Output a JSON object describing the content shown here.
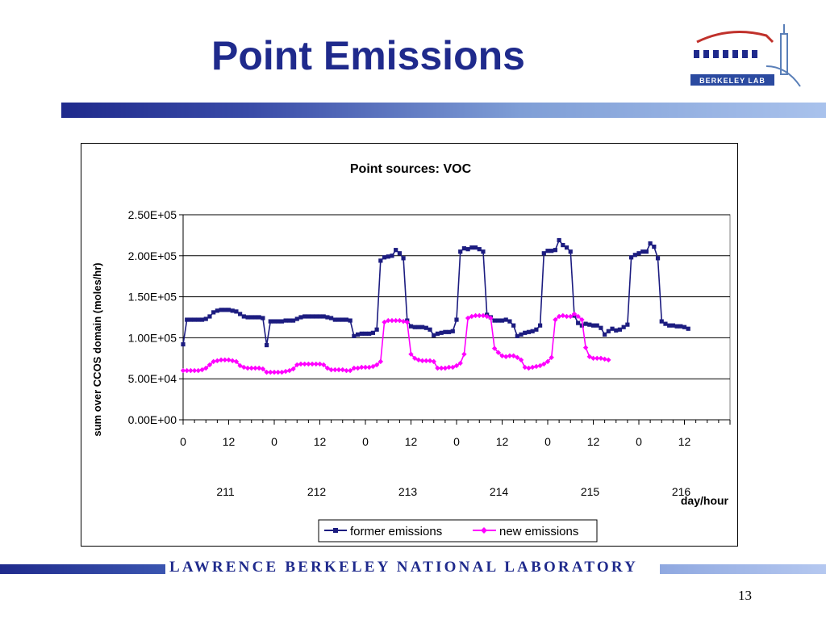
{
  "slide": {
    "title": "Point Emissions",
    "logo_text": "BERKELEY LAB",
    "footer_text": "LAWRENCE BERKELEY NATIONAL LABORATORY",
    "page_number": "13"
  },
  "chart_data": {
    "type": "line",
    "title": "Point sources: VOC",
    "ylabel": "sum over CCOS domain (moles/hr)",
    "xlabel": "day/hour",
    "ylim": [
      0,
      250000
    ],
    "yticks": [
      "0.00E+00",
      "5.00E+04",
      "1.00E+05",
      "1.50E+05",
      "2.00E+05",
      "2.50E+05"
    ],
    "hour_tick_labels": [
      "0",
      "12",
      "0",
      "12",
      "0",
      "12",
      "0",
      "12",
      "0",
      "12",
      "0",
      "12"
    ],
    "day_labels": [
      "211",
      "212",
      "213",
      "214",
      "215",
      "216"
    ],
    "grid": "horizontal",
    "legend_position": "bottom",
    "colors": {
      "former": "#1c1c80",
      "new": "#ff00ff"
    },
    "series": [
      {
        "name": "former emissions",
        "values": [
          92000,
          122000,
          122000,
          122000,
          122000,
          122000,
          123000,
          126000,
          131000,
          133000,
          134000,
          134000,
          134000,
          133000,
          132000,
          129000,
          126000,
          125000,
          125000,
          125000,
          125000,
          124000,
          91000,
          120000,
          120000,
          120000,
          120000,
          121000,
          121000,
          121000,
          123000,
          125000,
          126000,
          126000,
          126000,
          126000,
          126000,
          126000,
          125000,
          124000,
          122000,
          122000,
          122000,
          122000,
          121000,
          102000,
          104000,
          105000,
          105000,
          105000,
          106000,
          110000,
          194000,
          198000,
          199000,
          200000,
          207000,
          203000,
          197000,
          121000,
          114000,
          113000,
          113000,
          113000,
          112000,
          110000,
          103000,
          105000,
          106000,
          107000,
          107000,
          108000,
          122000,
          205000,
          209000,
          208000,
          210000,
          210000,
          208000,
          205000,
          128000,
          125000,
          121000,
          121000,
          121000,
          122000,
          120000,
          115000,
          102000,
          104000,
          106000,
          107000,
          108000,
          110000,
          115000,
          203000,
          206000,
          206000,
          207000,
          219000,
          213000,
          210000,
          205000,
          127000,
          118000,
          115000,
          117000,
          116000,
          115000,
          115000,
          112000,
          104000,
          108000,
          111000,
          109000,
          110000,
          113000,
          116000,
          198000,
          201000,
          203000,
          205000,
          205000,
          215000,
          211000,
          197000,
          120000,
          117000,
          115000,
          115000,
          114000,
          114000,
          113000,
          111000
        ]
      },
      {
        "name": "new emissions",
        "values": [
          60000,
          60000,
          60000,
          60000,
          60000,
          61000,
          63000,
          67000,
          71000,
          72000,
          73000,
          73000,
          73000,
          72000,
          71000,
          66000,
          64000,
          63000,
          63000,
          63000,
          63000,
          62000,
          58000,
          58000,
          58000,
          58000,
          58000,
          59000,
          60000,
          62000,
          67000,
          68000,
          68000,
          68000,
          68000,
          68000,
          68000,
          67000,
          63000,
          61000,
          61000,
          61000,
          61000,
          60000,
          60000,
          63000,
          63000,
          64000,
          64000,
          64000,
          65000,
          67000,
          71000,
          119000,
          121000,
          121000,
          121000,
          121000,
          120000,
          119000,
          80000,
          75000,
          73000,
          72000,
          72000,
          72000,
          71000,
          63000,
          63000,
          63000,
          64000,
          64000,
          66000,
          69000,
          80000,
          124000,
          126000,
          127000,
          127000,
          127000,
          126000,
          124000,
          87000,
          82000,
          78000,
          77000,
          78000,
          78000,
          76000,
          73000,
          64000,
          63000,
          64000,
          65000,
          66000,
          68000,
          71000,
          76000,
          122000,
          126000,
          127000,
          126000,
          126000,
          129000,
          126000,
          122000,
          88000,
          77000,
          75000,
          75000,
          75000,
          74000,
          73000
        ]
      }
    ]
  }
}
